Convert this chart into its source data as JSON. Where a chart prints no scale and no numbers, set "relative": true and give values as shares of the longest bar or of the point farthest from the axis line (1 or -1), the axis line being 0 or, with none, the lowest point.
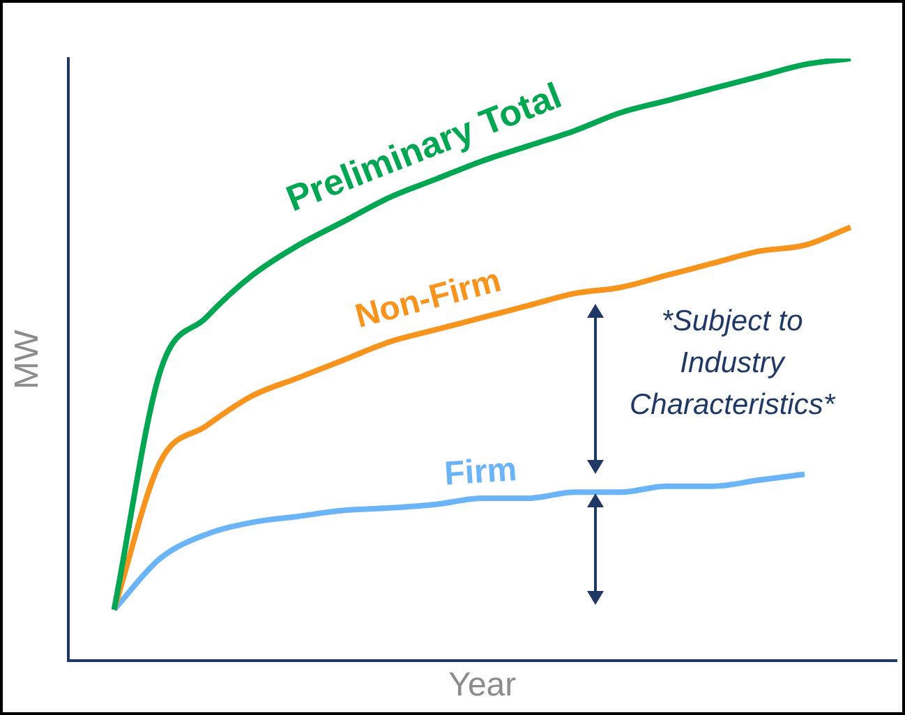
{
  "chart_data": {
    "type": "line",
    "relative": true,
    "xlabel": "Year",
    "ylabel": "MW",
    "categories": [
      null,
      null,
      null,
      null,
      null,
      null,
      null,
      null,
      null,
      null,
      null,
      null,
      null,
      null,
      null,
      null,
      null,
      null,
      null
    ],
    "series": [
      {
        "name": "Preliminary Total",
        "color": "#00a651",
        "values": [
          null,
          0.085,
          0.48,
          0.57,
          0.64,
          0.69,
          0.73,
          0.77,
          0.8,
          0.83,
          0.855,
          0.88,
          0.91,
          0.93,
          0.95,
          0.97,
          0.99,
          1.0,
          null
        ]
      },
      {
        "name": "Non-Firm",
        "color": "#f7941d",
        "values": [
          null,
          0.085,
          0.33,
          0.39,
          0.44,
          0.47,
          0.5,
          0.53,
          0.55,
          0.57,
          0.59,
          0.61,
          0.62,
          0.64,
          0.66,
          0.68,
          0.69,
          0.72,
          null
        ]
      },
      {
        "name": "Firm",
        "color": "#6cb4f8",
        "values": [
          null,
          0.085,
          0.17,
          0.21,
          0.23,
          0.24,
          0.25,
          0.254,
          0.26,
          0.27,
          0.27,
          0.28,
          0.28,
          0.29,
          0.29,
          0.3,
          0.31,
          null,
          null
        ]
      }
    ],
    "annotations": [
      "*Subject to Industry Characteristics*"
    ],
    "grid": false,
    "legend": false,
    "marker": "none",
    "line_style": "solid"
  }
}
